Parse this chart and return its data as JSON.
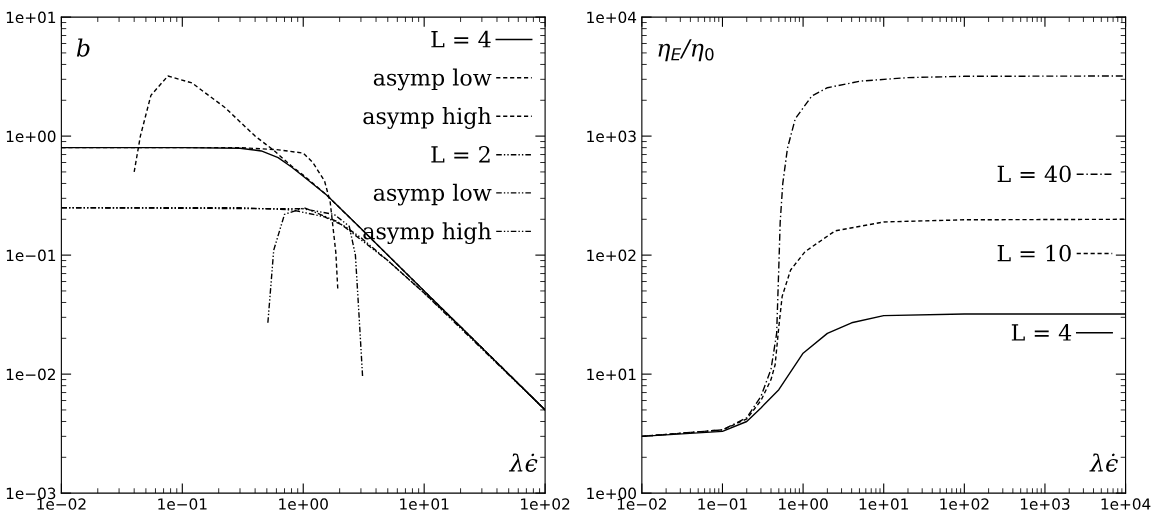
{
  "chart_data": [
    {
      "type": "line",
      "xlabel": "λϵ̇",
      "ylabel": "b",
      "log": "xy",
      "legend": "top right",
      "grid": false,
      "xlim": [
        0.01,
        100
      ],
      "ylim": [
        0.001,
        10
      ],
      "xticks": [
        {
          "value": 0.01,
          "label": "1e−02"
        },
        {
          "value": 0.1,
          "label": "1e−01"
        },
        {
          "value": 1,
          "label": "1e+00"
        },
        {
          "value": 10,
          "label": "1e+01"
        },
        {
          "value": 100,
          "label": "1e+02"
        }
      ],
      "yticks": [
        {
          "value": 0.001,
          "label": "1e−03"
        },
        {
          "value": 0.01,
          "label": "1e−02"
        },
        {
          "value": 0.1,
          "label": "1e−01"
        },
        {
          "value": 1,
          "label": "1e+00"
        },
        {
          "value": 10,
          "label": "1e+01"
        }
      ],
      "series": [
        {
          "name": "L = 4",
          "color": "#000000",
          "line_style": "solid",
          "x": [
            0.01,
            0.1,
            0.3,
            0.45,
            0.62,
            0.8,
            1,
            1.56,
            3,
            10,
            100
          ],
          "values": [
            0.8,
            0.8,
            0.79,
            0.75,
            0.66,
            0.55,
            0.46,
            0.32,
            0.167,
            0.05,
            0.005
          ]
        },
        {
          "name": "asymp low",
          "color": "#000000",
          "line_style": "dashed",
          "x": [
            0.01,
            0.3,
            0.6,
            1,
            1.2,
            1.5,
            1.67,
            1.86,
            1.93
          ],
          "values": [
            0.8,
            0.8,
            0.77,
            0.72,
            0.6,
            0.42,
            0.28,
            0.105,
            0.052
          ]
        },
        {
          "name": "asymp high",
          "color": "#000000",
          "line_style": "dashed",
          "x": [
            0.04,
            0.045,
            0.055,
            0.076,
            0.12,
            0.225,
            0.4,
            0.57,
            0.8,
            1,
            1.56,
            3,
            10,
            100
          ],
          "values": [
            0.5,
            1.0,
            2.2,
            3.2,
            2.8,
            1.74,
            1.0,
            0.76,
            0.56,
            0.47,
            0.32,
            0.167,
            0.05,
            0.005
          ]
        },
        {
          "name": "L = 2",
          "color": "#000000",
          "line_style": "dashdotdot",
          "x": [
            0.01,
            0.3,
            0.8,
            1.5,
            2.2,
            3,
            5,
            10,
            20,
            100
          ],
          "values": [
            0.25,
            0.25,
            0.24,
            0.21,
            0.175,
            0.14,
            0.09,
            0.048,
            0.025,
            0.005
          ]
        },
        {
          "name": "asymp low",
          "color": "#000000",
          "line_style": "dashdotdot",
          "x": [
            0.01,
            1,
            1.8,
            2.4,
            2.7,
            2.9,
            3.1
          ],
          "values": [
            0.25,
            0.245,
            0.22,
            0.175,
            0.1,
            0.03,
            0.0093
          ]
        },
        {
          "name": "asymp high",
          "color": "#000000",
          "line_style": "dashdotdot",
          "x": [
            0.51,
            0.57,
            0.7,
            1.02,
            1.94,
            5,
            10,
            100
          ],
          "values": [
            0.027,
            0.11,
            0.22,
            0.25,
            0.19,
            0.09,
            0.048,
            0.005
          ]
        }
      ]
    },
    {
      "type": "line",
      "xlabel": "λϵ̇",
      "ylabel": "η$_{E}$/η$_{0}$",
      "log": "xy",
      "legend": "right",
      "grid": false,
      "xlim": [
        0.01,
        10000
      ],
      "ylim": [
        1,
        10000
      ],
      "xticks": [
        {
          "value": 0.01,
          "label": "1e−02"
        },
        {
          "value": 0.1,
          "label": "1e−01"
        },
        {
          "value": 1,
          "label": "1e+00"
        },
        {
          "value": 10,
          "label": "1e+01"
        },
        {
          "value": 100,
          "label": "1e+02"
        },
        {
          "value": 1000,
          "label": "1e+03"
        },
        {
          "value": 10000,
          "label": "1e+04"
        }
      ],
      "yticks": [
        {
          "value": 1,
          "label": "1e+00"
        },
        {
          "value": 10,
          "label": "1e+01"
        },
        {
          "value": 100,
          "label": "1e+02"
        },
        {
          "value": 1000,
          "label": "1e+03"
        },
        {
          "value": 10000,
          "label": "1e+04"
        }
      ],
      "series": [
        {
          "name": "L = 40",
          "color": "#000000",
          "line_style": "dashdot",
          "x": [
            0.01,
            0.1,
            0.2,
            0.3,
            0.4,
            0.47,
            0.5,
            0.52,
            0.56,
            0.64,
            0.8,
            1.28,
            2,
            5.2,
            20,
            100,
            10000
          ],
          "values": [
            3,
            3.4,
            4.3,
            6.5,
            11,
            22,
            80,
            190,
            400,
            790,
            1400,
            2170,
            2550,
            2900,
            3100,
            3180,
            3200
          ]
        },
        {
          "name": "L = 10",
          "color": "#000000",
          "line_style": "dashed",
          "x": [
            0.01,
            0.1,
            0.2,
            0.3,
            0.4,
            0.45,
            0.5,
            0.55,
            0.7,
            1.06,
            2.5,
            10,
            100,
            10000
          ],
          "values": [
            3,
            3.4,
            4.2,
            6,
            9,
            12,
            25,
            45,
            75,
            107,
            160,
            190,
            198,
            200
          ]
        },
        {
          "name": "L = 4",
          "color": "#000000",
          "line_style": "solid",
          "x": [
            0.01,
            0.1,
            0.2,
            0.3,
            0.5,
            1,
            2,
            4,
            10,
            100,
            10000
          ],
          "values": [
            3,
            3.3,
            4,
            5.2,
            7.4,
            15,
            22,
            27,
            31,
            32,
            32
          ]
        }
      ]
    }
  ]
}
